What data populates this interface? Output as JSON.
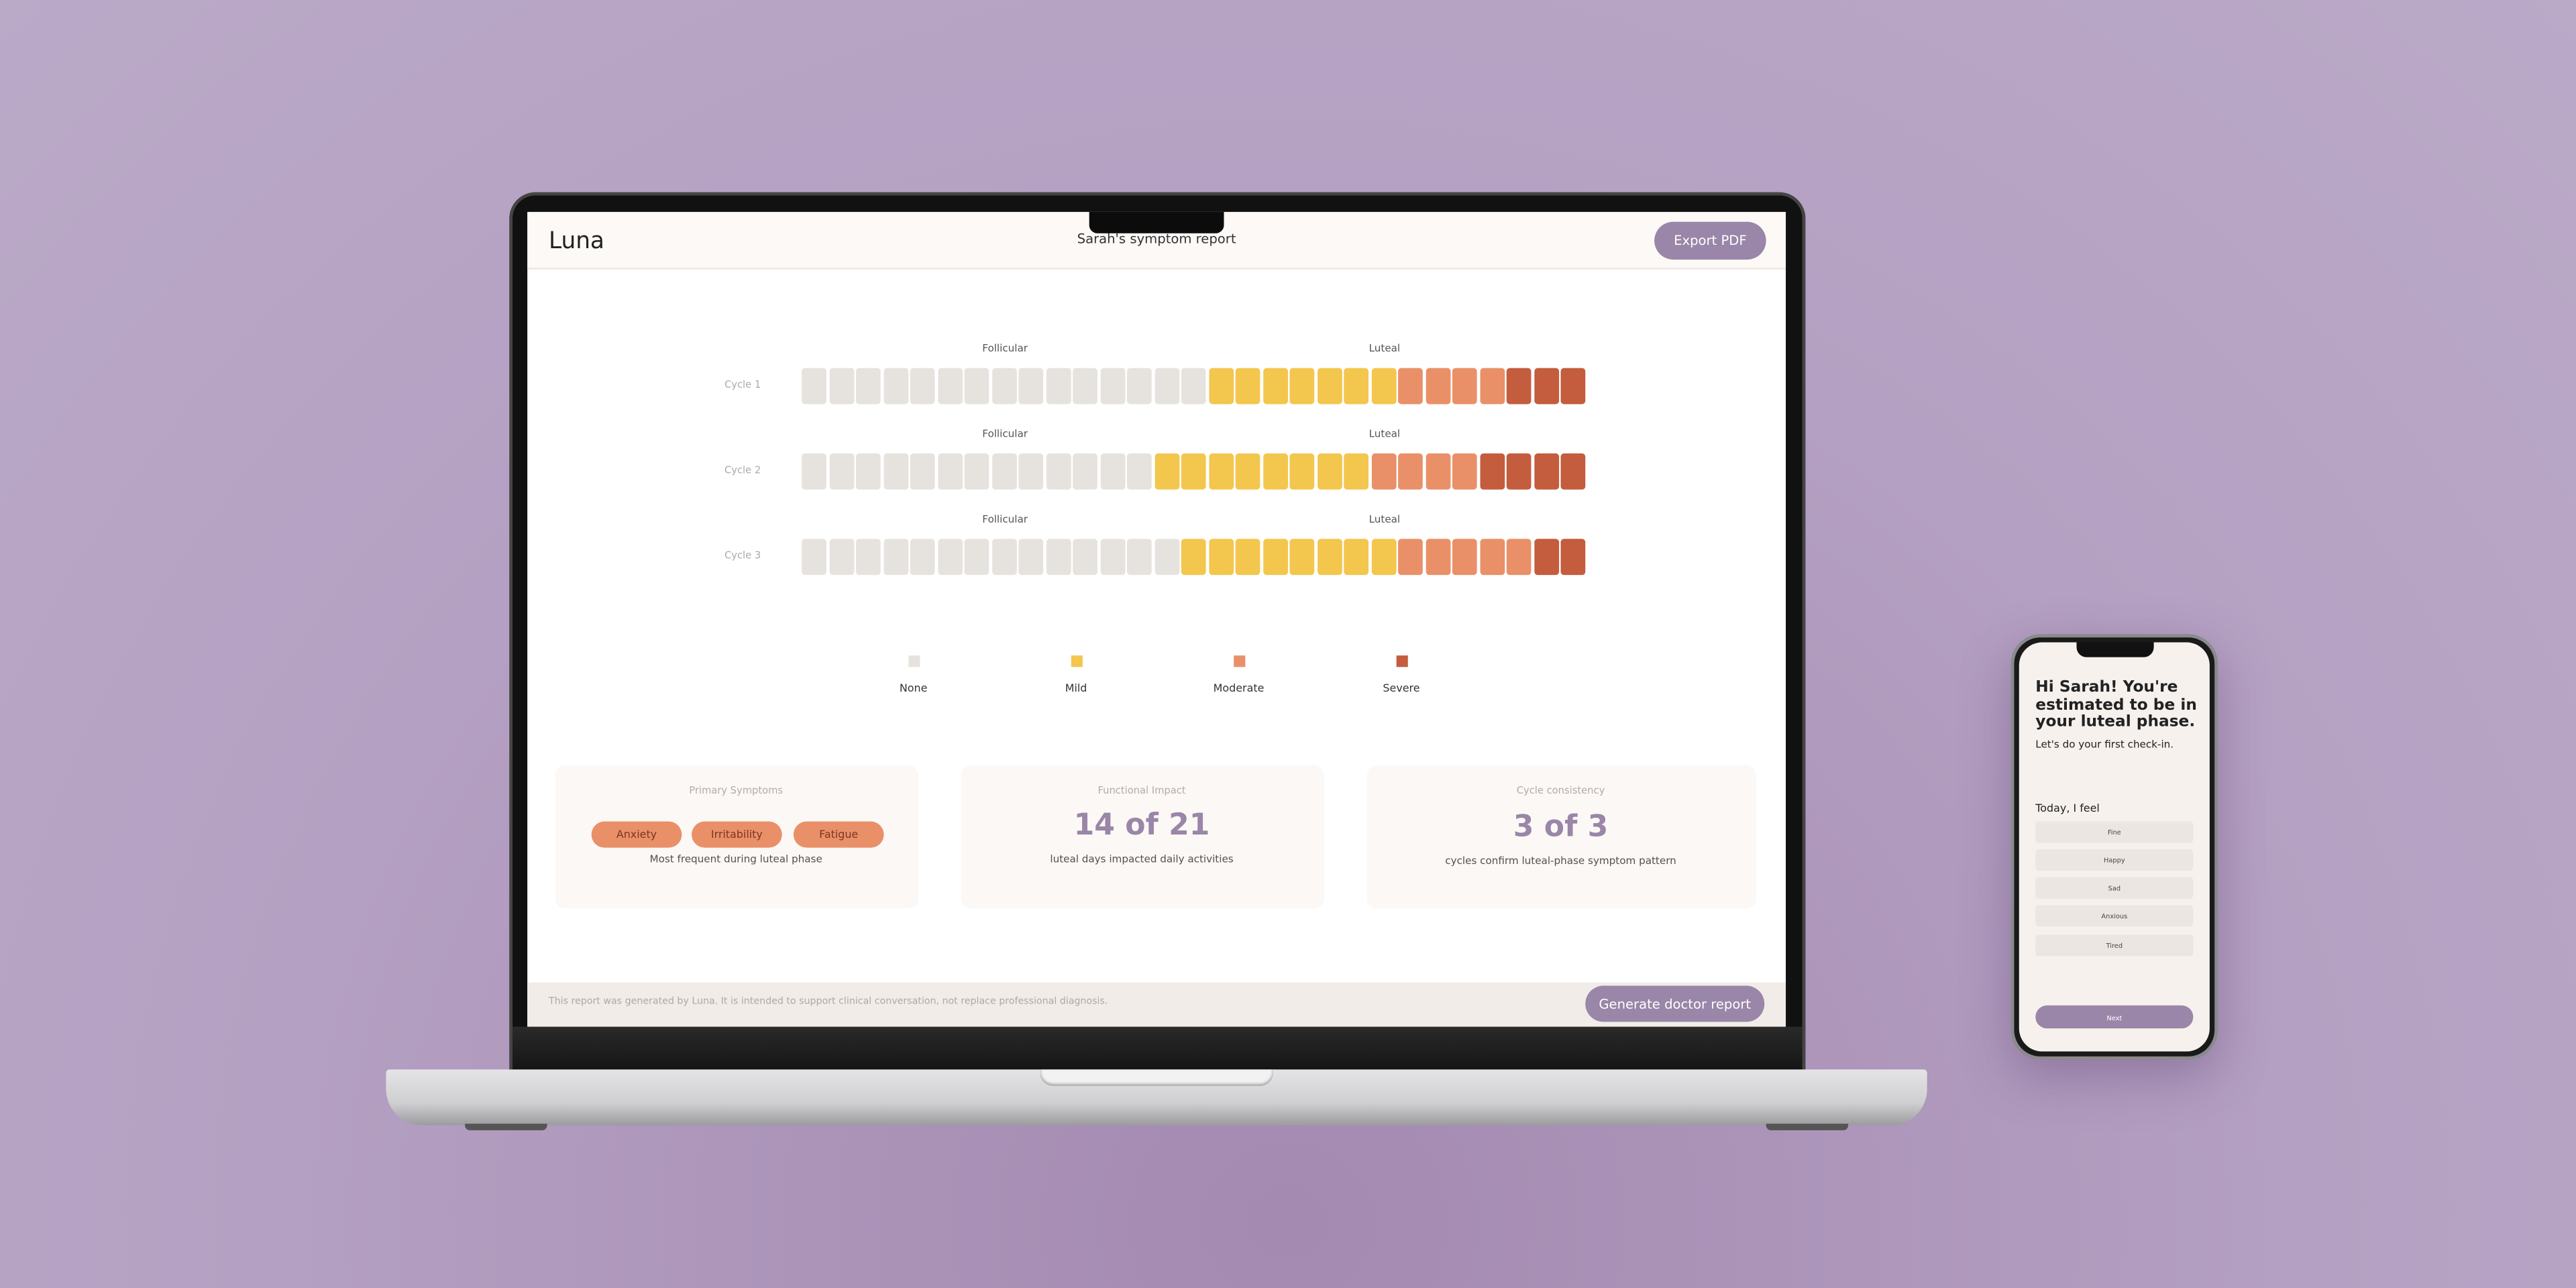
{
  "header": {
    "brand": "Luna",
    "title": "Sarah's symptom report",
    "export_button": "Export PDF"
  },
  "heatmap": {
    "cycles": [
      {
        "label": "Cycle 1",
        "phases": [
          "Follicular",
          "Luteal"
        ],
        "days": [
          0,
          0,
          0,
          0,
          0,
          0,
          0,
          0,
          0,
          0,
          0,
          0,
          0,
          0,
          0,
          1,
          1,
          1,
          1,
          1,
          1,
          1,
          2,
          2,
          2,
          2,
          3,
          3,
          3
        ]
      },
      {
        "label": "Cycle 2",
        "phases": [
          "Follicular",
          "Luteal"
        ],
        "days": [
          0,
          0,
          0,
          0,
          0,
          0,
          0,
          0,
          0,
          0,
          0,
          0,
          0,
          1,
          1,
          1,
          1,
          1,
          1,
          1,
          1,
          2,
          2,
          2,
          2,
          3,
          3,
          3,
          3
        ]
      },
      {
        "label": "Cycle 3",
        "phases": [
          "Follicular",
          "Luteal"
        ],
        "days": [
          0,
          0,
          0,
          0,
          0,
          0,
          0,
          0,
          0,
          0,
          0,
          0,
          0,
          0,
          1,
          1,
          1,
          1,
          1,
          1,
          1,
          1,
          2,
          2,
          2,
          2,
          2,
          3,
          3
        ]
      }
    ],
    "legend": [
      {
        "label": "None",
        "color": "#e6e3df"
      },
      {
        "label": "Mild",
        "color": "#f3c64d"
      },
      {
        "label": "Moderate",
        "color": "#e99068"
      },
      {
        "label": "Severe",
        "color": "#c45c3e"
      }
    ]
  },
  "cards": [
    {
      "title": "Primary Symptoms",
      "tags": [
        "Anxiety",
        "Irritability",
        "Fatigue"
      ],
      "caption": "Most frequent during luteal phase"
    },
    {
      "title": "Functional Impact",
      "value": "14 of 21",
      "caption": "luteal days impacted daily activities"
    },
    {
      "title": "Cycle consistency",
      "value": "3 of 3",
      "caption": "cycles confirm luteal-phase symptom pattern"
    }
  ],
  "footer": {
    "disclaimer": "This report was generated by Luna. It is intended to support clinical conversation, not replace professional diagnosis.",
    "button": "Generate doctor report"
  },
  "phone": {
    "greeting": "Hi Sarah! You're estimated to be in your luteal phase.",
    "subtitle": "Let's do your first check-in.",
    "prompt": "Today, I feel",
    "options": [
      "Fine",
      "Happy",
      "Sad",
      "Anxious",
      "Tired"
    ],
    "button": "Next"
  }
}
